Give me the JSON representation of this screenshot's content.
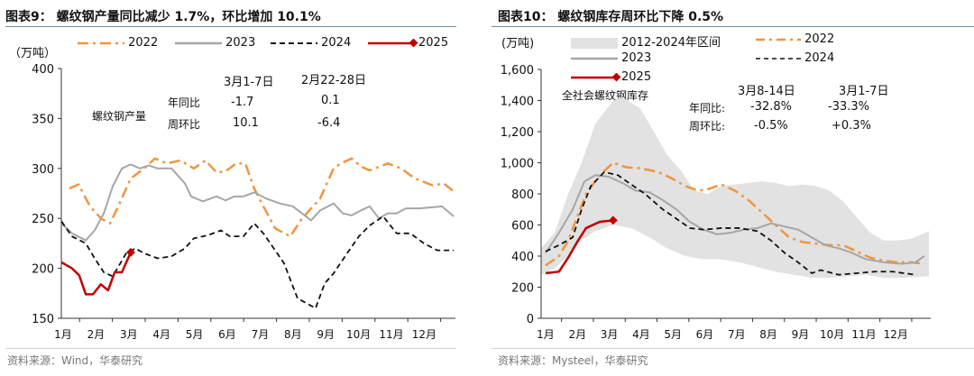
{
  "charts": [
    {
      "title": "图表9：  螺纹钢产量同比减少 1.7%，环比增加 10.1%",
      "source": "资料来源：Wind，华泰研究",
      "unit": "（万吨）",
      "annotation": {
        "label": "螺纹钢产量",
        "col1": "3月1-7日",
        "col2": "2月22-28日",
        "row1": "年同比",
        "row1_v1": "-1.7",
        "row1_v2": "0.1",
        "row2": "周环比",
        "row2_v1": "10.1",
        "row2_v2": "-6.4"
      }
    },
    {
      "title": "图表10：  螺纹钢库存周环比下降 0.5%",
      "source": "资料来源：Mysteel，华泰研究",
      "unit": "(万吨)",
      "annotation": {
        "label": "全社会螺纹钢库存",
        "col1": "3月8-14日",
        "col2": "3月1-7日",
        "row1": "年同比:",
        "row1_v1": "-32.8%",
        "row1_v2": "-33.3%",
        "row2": "周环比:",
        "row2_v1": "-0.5%",
        "row2_v2": "+0.3%"
      }
    }
  ],
  "colors": {
    "2022": "#f0953f",
    "2023": "#a6a6a6",
    "2024": "#111111",
    "2025": "#c00000",
    "band": "#e2e2e2"
  },
  "chart_data": [
    {
      "type": "line",
      "ylabel": "（万吨）",
      "ylim": [
        150,
        400
      ],
      "yticks": [
        "150",
        "200",
        "250",
        "300",
        "350",
        "400"
      ],
      "yvals": [
        150,
        200,
        250,
        300,
        350,
        400
      ],
      "xticks": [
        "1月",
        "2月",
        "3月",
        "4月",
        "5月",
        "6月",
        "7月",
        "8月",
        "9月",
        "10月",
        "11月",
        "12月"
      ],
      "xlim": [
        0.95,
        12.95
      ],
      "legend": [
        "2022",
        "2023",
        "2024",
        "2025"
      ],
      "legend_placement": "top",
      "series": [
        {
          "name": "2022",
          "style": "dash-dot",
          "x": [
            1.19,
            1.47,
            1.82,
            2.15,
            2.43,
            2.65,
            3.06,
            3.47,
            3.8,
            4.16,
            4.57,
            4.98,
            5.34,
            5.67,
            5.95,
            6.27,
            6.55,
            6.82,
            7.1,
            7.46,
            7.92,
            8.28,
            8.83,
            9.24,
            9.46,
            9.79,
            10.07,
            10.34,
            10.89,
            11.3,
            11.71,
            12.26,
            12.59,
            12.9
          ],
          "y": [
            280,
            284,
            262,
            250,
            245,
            260,
            290,
            300,
            310,
            305,
            308,
            300,
            308,
            296,
            297,
            305,
            305,
            280,
            262,
            240,
            232,
            250,
            270,
            300,
            305,
            310,
            302,
            298,
            305,
            300,
            290,
            283,
            285,
            277
          ]
        },
        {
          "name": "2023",
          "style": "solid",
          "x": [
            0.95,
            1.27,
            1.69,
            1.96,
            2.24,
            2.51,
            2.79,
            3.06,
            3.34,
            3.61,
            3.88,
            4.3,
            4.71,
            4.9,
            5.26,
            5.67,
            5.95,
            6.22,
            6.49,
            6.82,
            7.18,
            7.59,
            8.0,
            8.28,
            8.55,
            8.83,
            9.24,
            9.52,
            9.79,
            10.07,
            10.34,
            10.62,
            10.89,
            11.16,
            11.44,
            11.85,
            12.54,
            12.9
          ],
          "y": [
            245,
            235,
            228,
            238,
            255,
            282,
            300,
            304,
            300,
            303,
            300,
            300,
            285,
            272,
            267,
            272,
            268,
            272,
            272,
            276,
            270,
            265,
            262,
            255,
            248,
            258,
            265,
            255,
            253,
            258,
            262,
            250,
            255,
            255,
            260,
            260,
            262,
            252
          ]
        },
        {
          "name": "2024",
          "style": "dash",
          "x": [
            0.95,
            1.27,
            1.69,
            1.96,
            2.24,
            2.51,
            2.92,
            3.2,
            3.47,
            3.88,
            4.3,
            4.71,
            4.98,
            5.4,
            5.81,
            6.08,
            6.49,
            6.82,
            7.1,
            7.46,
            7.73,
            8.14,
            8.42,
            8.69,
            8.97,
            9.24,
            9.65,
            10.01,
            10.34,
            10.75,
            11.16,
            11.58,
            11.99,
            12.4,
            12.9
          ],
          "y": [
            247,
            232,
            225,
            210,
            196,
            192,
            215,
            220,
            215,
            210,
            212,
            220,
            230,
            233,
            238,
            232,
            232,
            245,
            235,
            218,
            205,
            170,
            165,
            160,
            185,
            195,
            215,
            232,
            243,
            252,
            235,
            235,
            225,
            218,
            218
          ]
        },
        {
          "name": "2025",
          "style": "solid-marker",
          "x": [
            0.95,
            1.27,
            1.49,
            1.69,
            1.91,
            2.15,
            2.37,
            2.57,
            2.79,
            3.06
          ],
          "y": [
            206,
            200,
            193,
            174,
            174,
            184,
            178,
            196,
            196,
            216
          ]
        }
      ]
    },
    {
      "type": "line",
      "ylabel": "(万吨)",
      "ylim": [
        0,
        1600
      ],
      "yticks": [
        "0",
        "200",
        "400",
        "600",
        "800",
        "1,000",
        "1,200",
        "1,400",
        "1,600"
      ],
      "yvals": [
        0,
        200,
        400,
        600,
        800,
        1000,
        1200,
        1400,
        1600
      ],
      "xticks": [
        "1月",
        "2月",
        "3月",
        "4月",
        "5月",
        "6月",
        "7月",
        "8月",
        "9月",
        "10月",
        "11月",
        "12月"
      ],
      "xlim": [
        0.86,
        13.1
      ],
      "legend": [
        "2012-2024年区间",
        "2022",
        "2023",
        "2024",
        "2025"
      ],
      "legend_placement": "top",
      "band": {
        "name": "2012-2024年区间",
        "x_upper": [
          0.86,
          1.28,
          1.71,
          2.13,
          2.56,
          3.12,
          3.41,
          3.97,
          4.4,
          4.82,
          5.25,
          5.67,
          6.1,
          6.52,
          6.95,
          7.37,
          7.8,
          8.22,
          8.65,
          9.07,
          9.5,
          9.92,
          10.35,
          10.77,
          11.2,
          11.62,
          12.05,
          12.47,
          13.04
        ],
        "upper": [
          450,
          550,
          800,
          1000,
          1250,
          1400,
          1420,
          1350,
          1200,
          1050,
          950,
          820,
          800,
          850,
          860,
          870,
          880,
          870,
          850,
          860,
          850,
          820,
          750,
          650,
          550,
          500,
          500,
          510,
          560
        ],
        "x_lower": [
          0.86,
          1.28,
          1.71,
          2.13,
          2.56,
          3.12,
          3.69,
          4.26,
          4.82,
          5.39,
          5.96,
          6.52,
          7.09,
          7.66,
          8.22,
          8.79,
          9.36,
          9.92,
          10.49,
          11.06,
          11.62,
          12.19,
          13.04
        ],
        "lower": [
          280,
          320,
          400,
          500,
          560,
          600,
          580,
          520,
          450,
          400,
          380,
          380,
          360,
          330,
          300,
          280,
          260,
          260,
          270,
          280,
          260,
          260,
          270
        ]
      },
      "series": [
        {
          "name": "2022",
          "style": "dash-dot",
          "x": [
            1.0,
            1.42,
            1.71,
            1.99,
            2.27,
            2.7,
            3.12,
            3.55,
            3.97,
            4.54,
            4.96,
            5.39,
            5.81,
            6.1,
            6.52,
            6.95,
            7.37,
            7.8,
            8.22,
            8.65,
            9.07,
            9.5,
            9.92,
            10.35,
            10.77,
            11.2,
            11.62,
            12.05,
            12.47,
            12.9
          ],
          "y": [
            340,
            400,
            500,
            650,
            800,
            920,
            1000,
            970,
            965,
            940,
            900,
            850,
            820,
            830,
            860,
            820,
            760,
            680,
            600,
            520,
            490,
            480,
            470,
            470,
            430,
            390,
            370,
            360,
            360,
            350
          ]
        },
        {
          "name": "2023",
          "style": "solid",
          "x": [
            1.0,
            1.42,
            1.85,
            2.22,
            2.56,
            2.98,
            3.41,
            3.83,
            4.26,
            4.68,
            5.11,
            5.53,
            5.96,
            6.38,
            6.81,
            7.23,
            7.66,
            8.08,
            8.51,
            8.93,
            9.36,
            9.78,
            10.21,
            10.63,
            11.06,
            11.62,
            12.19,
            12.61,
            12.9
          ],
          "y": [
            420,
            550,
            700,
            880,
            920,
            910,
            870,
            820,
            810,
            760,
            700,
            620,
            570,
            540,
            550,
            570,
            580,
            610,
            590,
            570,
            520,
            470,
            450,
            420,
            380,
            360,
            350,
            360,
            400
          ]
        },
        {
          "name": "2024",
          "style": "dash",
          "x": [
            1.0,
            1.42,
            1.85,
            2.13,
            2.42,
            2.84,
            3.27,
            3.69,
            4.12,
            4.68,
            5.11,
            5.53,
            5.96,
            6.52,
            7.09,
            7.66,
            8.08,
            8.51,
            8.93,
            9.36,
            9.64,
            10.21,
            10.77,
            11.34,
            11.9,
            12.61
          ],
          "y": [
            430,
            470,
            520,
            700,
            850,
            940,
            920,
            860,
            800,
            700,
            640,
            580,
            570,
            580,
            580,
            560,
            500,
            420,
            360,
            290,
            310,
            280,
            290,
            300,
            300,
            280
          ]
        },
        {
          "name": "2025",
          "style": "solid-marker",
          "x": [
            1.0,
            1.42,
            1.71,
            1.99,
            2.27,
            2.7,
            3.12
          ],
          "y": [
            290,
            300,
            390,
            490,
            580,
            620,
            630
          ]
        }
      ]
    }
  ]
}
